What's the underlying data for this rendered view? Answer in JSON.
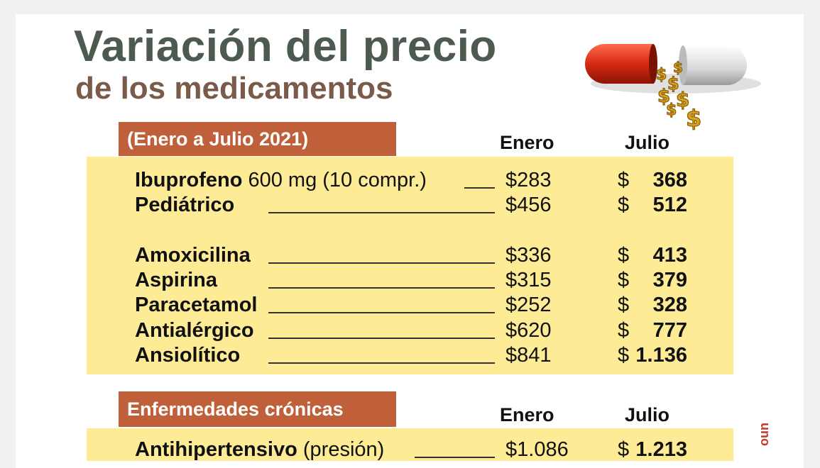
{
  "title": "Variación del precio",
  "subtitle": "de los medicamentos",
  "section1": {
    "banner": "(Enero a  Julio 2021)",
    "col_enero": "Enero",
    "col_julio": "Julio",
    "rows": [
      {
        "name": "Ibuprofeno",
        "detail": "  600 mg (10 compr.)",
        "enero": "$283",
        "julio_sym": "$",
        "julio": "368"
      },
      {
        "name": "Pediátrico",
        "detail": "",
        "enero": "$456",
        "julio_sym": "$",
        "julio": "512"
      },
      {
        "name": "Amoxicilina",
        "detail": "",
        "enero": "$336",
        "julio_sym": "$",
        "julio": "413"
      },
      {
        "name": "Aspirina",
        "detail": "",
        "enero": "$315",
        "julio_sym": "$",
        "julio": "379"
      },
      {
        "name": "Paracetamol",
        "detail": "",
        "enero": "$252",
        "julio_sym": "$",
        "julio": "328"
      },
      {
        "name": "Antialérgico",
        "detail": "",
        "enero": "$620",
        "julio_sym": "$",
        "julio": "777"
      },
      {
        "name": "Ansiolítico",
        "detail": "",
        "enero": "$841",
        "julio_sym": "$",
        "julio": "1.136"
      }
    ]
  },
  "section2": {
    "banner": "Enfermedades crónicas",
    "col_enero": "Enero",
    "col_julio": "Julio",
    "rows": [
      {
        "name": "Antihipertensivo",
        "detail": " (presión)",
        "enero": "$1.086",
        "julio_sym": "$",
        "julio": "1.213"
      }
    ]
  },
  "watermark": "uno",
  "colors": {
    "banner": "#c0603a",
    "panel": "#fdec95",
    "title": "#4d5a50",
    "subtitle": "#7a5a48"
  },
  "icons": {
    "illustration": "pill-capsule-icon"
  }
}
